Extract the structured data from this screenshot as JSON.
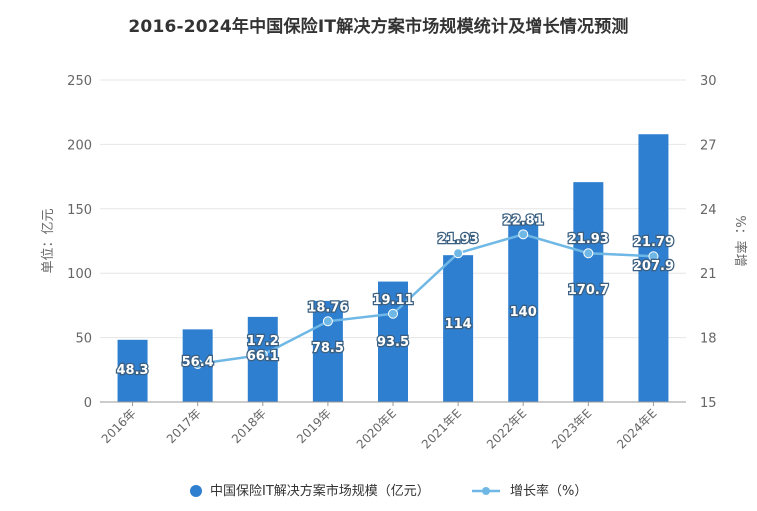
{
  "chart_data": {
    "type": "bar",
    "title": "2016-2024年中国保险IT解决方案市场规模统计及增长情况预测",
    "categories": [
      "2016年",
      "2017年",
      "2018年",
      "2019年",
      "2020年E",
      "2021年E",
      "2022年E",
      "2023年E",
      "2024年E"
    ],
    "series": [
      {
        "name": "中国保险IT解决方案市场规模（亿元）",
        "type": "bar",
        "axis": "left",
        "values": [
          48.3,
          56.4,
          66.1,
          78.5,
          93.5,
          114,
          140,
          170.7,
          207.9
        ],
        "labels": [
          "48.3",
          "56.4",
          "66.1",
          "78.5",
          "93.5",
          "114",
          "140",
          "170.7",
          "207.9"
        ]
      },
      {
        "name": "增长率（%）",
        "type": "line",
        "axis": "right",
        "values": [
          null,
          16.77,
          17.2,
          18.76,
          19.11,
          21.93,
          22.81,
          21.93,
          21.79
        ],
        "labels": [
          "",
          "",
          "17.2",
          "18.76",
          "19.11",
          "21.93",
          "22.81",
          "21.93",
          "21.79"
        ]
      }
    ],
    "ylabel": "单位：亿元",
    "y2label": "%：率增",
    "ylim": [
      0,
      250
    ],
    "y2lim": [
      15,
      30
    ],
    "yticks": [
      "0",
      "50",
      "100",
      "150",
      "200",
      "250"
    ],
    "y2ticks": [
      "15",
      "18",
      "21",
      "24",
      "27",
      "30"
    ],
    "grid": true,
    "legend_position": "bottom",
    "colors": {
      "bar": "#2f7fd0",
      "line": "#6fb8e6",
      "grid": "#e6e6e6"
    }
  }
}
